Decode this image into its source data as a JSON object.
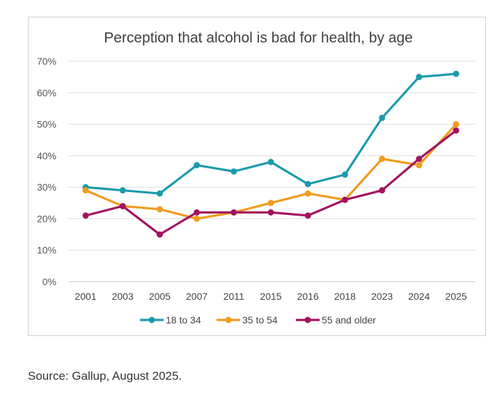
{
  "chart_data": {
    "type": "line",
    "title": "Perception that alcohol is bad for health, by age",
    "xlabel": "",
    "ylabel": "",
    "categories": [
      "2001",
      "2003",
      "2005",
      "2007",
      "2011",
      "2015",
      "2016",
      "2018",
      "2023",
      "2024",
      "2025"
    ],
    "ylim": [
      0,
      70
    ],
    "yticks": [
      0,
      10,
      20,
      30,
      40,
      50,
      60,
      70
    ],
    "ytick_format": "%",
    "grid": true,
    "legend_position": "bottom",
    "series": [
      {
        "name": "18 to 34",
        "color": "#1a9bab",
        "values": [
          30,
          29,
          28,
          37,
          35,
          38,
          31,
          34,
          52,
          65,
          66
        ]
      },
      {
        "name": "35 to 54",
        "color": "#f29b1d",
        "values": [
          29,
          24,
          23,
          20,
          22,
          25,
          28,
          26,
          39,
          37,
          50
        ]
      },
      {
        "name": "55 and older",
        "color": "#a3135f",
        "values": [
          21,
          24,
          15,
          22,
          22,
          22,
          21,
          26,
          29,
          39,
          48
        ]
      }
    ]
  },
  "source": "Source: Gallup, August 2025."
}
